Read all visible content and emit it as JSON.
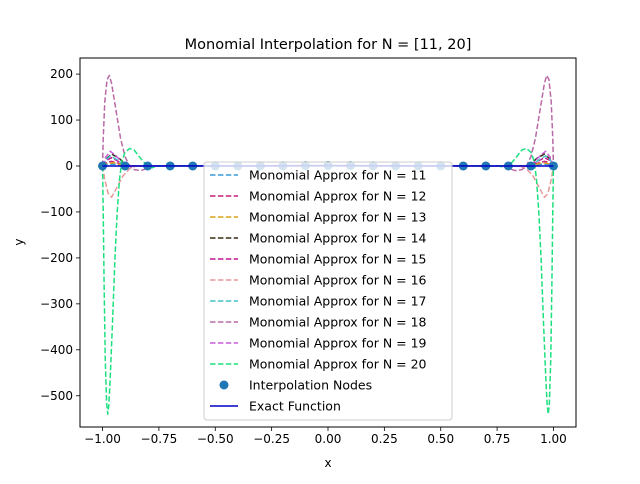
{
  "chart_data": {
    "type": "line",
    "title": "Monomial Interpolation for N = [11, 20]",
    "xlabel": "x",
    "ylabel": "y",
    "xlim": [
      -1.1,
      1.1
    ],
    "ylim": [
      -568,
      235
    ],
    "x_ticks": [
      {
        "value": -1.0,
        "label": "−1.00"
      },
      {
        "value": -0.75,
        "label": "−0.75"
      },
      {
        "value": -0.5,
        "label": "−0.50"
      },
      {
        "value": -0.25,
        "label": "−0.25"
      },
      {
        "value": 0.0,
        "label": "0.00"
      },
      {
        "value": 0.25,
        "label": "0.25"
      },
      {
        "value": 0.5,
        "label": "0.50"
      },
      {
        "value": 0.75,
        "label": "0.75"
      },
      {
        "value": 1.0,
        "label": "1.00"
      }
    ],
    "y_ticks": [
      {
        "value": 200,
        "label": "200"
      },
      {
        "value": 100,
        "label": "100"
      },
      {
        "value": 0,
        "label": "0"
      },
      {
        "value": -100,
        "label": "−100"
      },
      {
        "value": -200,
        "label": "−200"
      },
      {
        "value": -300,
        "label": "−300"
      },
      {
        "value": -400,
        "label": "−400"
      },
      {
        "value": -500,
        "label": "−500"
      }
    ],
    "grid": false,
    "legend_position": "lower-center",
    "series": [
      {
        "name": "Monomial Approx for N = 11",
        "color": "#3a9bd6",
        "style": "dashed",
        "points": [
          [
            -1.0,
            0
          ],
          [
            -0.98,
            3
          ],
          [
            -0.95,
            4
          ],
          [
            -0.92,
            2
          ],
          [
            -0.88,
            0
          ],
          [
            0,
            0
          ],
          [
            0.88,
            0
          ],
          [
            0.92,
            2
          ],
          [
            0.95,
            4
          ],
          [
            0.98,
            3
          ],
          [
            1.0,
            0
          ]
        ]
      },
      {
        "name": "Monomial Approx for N = 12",
        "color": "#c81e7f",
        "style": "dashed",
        "points": [
          [
            -1.0,
            0
          ],
          [
            -0.98,
            8
          ],
          [
            -0.96,
            10
          ],
          [
            -0.93,
            6
          ],
          [
            -0.9,
            0
          ],
          [
            0,
            0
          ],
          [
            0.9,
            0
          ],
          [
            0.93,
            6
          ],
          [
            0.96,
            10
          ],
          [
            0.98,
            8
          ],
          [
            1.0,
            0
          ]
        ]
      },
      {
        "name": "Monomial Approx for N = 13",
        "color": "#d9a21b",
        "style": "dashed",
        "points": [
          [
            -1.0,
            0
          ],
          [
            -0.98,
            5
          ],
          [
            -0.95,
            7
          ],
          [
            -0.92,
            3
          ],
          [
            -0.89,
            0
          ],
          [
            0,
            0
          ],
          [
            0.89,
            0
          ],
          [
            0.92,
            3
          ],
          [
            0.95,
            7
          ],
          [
            0.98,
            5
          ],
          [
            1.0,
            0
          ]
        ]
      },
      {
        "name": "Monomial Approx for N = 14",
        "color": "#3b2a14",
        "style": "dashed",
        "points": [
          [
            -1.0,
            0
          ],
          [
            -0.985,
            15
          ],
          [
            -0.96,
            26
          ],
          [
            -0.93,
            18
          ],
          [
            -0.9,
            5
          ],
          [
            -0.87,
            0
          ],
          [
            0,
            0
          ],
          [
            0.87,
            0
          ],
          [
            0.9,
            5
          ],
          [
            0.93,
            18
          ],
          [
            0.96,
            26
          ],
          [
            0.985,
            15
          ],
          [
            1.0,
            0
          ]
        ]
      },
      {
        "name": "Monomial Approx for N = 15",
        "color": "#c4168f",
        "style": "dashed",
        "points": [
          [
            -1.0,
            0
          ],
          [
            -0.985,
            12
          ],
          [
            -0.96,
            18
          ],
          [
            -0.93,
            10
          ],
          [
            -0.9,
            2
          ],
          [
            -0.87,
            0
          ],
          [
            0,
            0
          ],
          [
            0.87,
            0
          ],
          [
            0.9,
            2
          ],
          [
            0.93,
            10
          ],
          [
            0.96,
            18
          ],
          [
            0.985,
            12
          ],
          [
            1.0,
            0
          ]
        ]
      },
      {
        "name": "Monomial Approx for N = 16",
        "color": "#e8999a",
        "style": "dashed",
        "points": [
          [
            -1.0,
            0
          ],
          [
            -0.99,
            -30
          ],
          [
            -0.975,
            -60
          ],
          [
            -0.96,
            -68
          ],
          [
            -0.94,
            -50
          ],
          [
            -0.91,
            -22
          ],
          [
            -0.88,
            -6
          ],
          [
            -0.85,
            0
          ],
          [
            0,
            0
          ],
          [
            0.85,
            0
          ],
          [
            0.88,
            -6
          ],
          [
            0.91,
            -22
          ],
          [
            0.94,
            -50
          ],
          [
            0.96,
            -68
          ],
          [
            0.975,
            -60
          ],
          [
            0.99,
            -30
          ],
          [
            1.0,
            0
          ]
        ]
      },
      {
        "name": "Monomial Approx for N = 17",
        "color": "#44c2cc",
        "style": "dashed",
        "points": [
          [
            -1.0,
            0
          ],
          [
            -0.985,
            14
          ],
          [
            -0.965,
            22
          ],
          [
            -0.94,
            15
          ],
          [
            -0.91,
            4
          ],
          [
            -0.88,
            0
          ],
          [
            0,
            0
          ],
          [
            0.88,
            0
          ],
          [
            0.91,
            4
          ],
          [
            0.94,
            15
          ],
          [
            0.965,
            22
          ],
          [
            0.985,
            14
          ],
          [
            1.0,
            0
          ]
        ]
      },
      {
        "name": "Monomial Approx for N = 18",
        "color": "#b96aa6",
        "style": "dashed",
        "points": [
          [
            -1.0,
            0
          ],
          [
            -0.997,
            60
          ],
          [
            -0.99,
            140
          ],
          [
            -0.98,
            188
          ],
          [
            -0.97,
            197
          ],
          [
            -0.96,
            180
          ],
          [
            -0.94,
            120
          ],
          [
            -0.92,
            60
          ],
          [
            -0.9,
            20
          ],
          [
            -0.88,
            0
          ],
          [
            -0.86,
            -8
          ],
          [
            -0.83,
            -10
          ],
          [
            -0.8,
            -5
          ],
          [
            -0.77,
            0
          ],
          [
            0,
            0
          ],
          [
            0.77,
            0
          ],
          [
            0.8,
            -5
          ],
          [
            0.83,
            -10
          ],
          [
            0.86,
            -8
          ],
          [
            0.88,
            0
          ],
          [
            0.9,
            20
          ],
          [
            0.92,
            60
          ],
          [
            0.94,
            120
          ],
          [
            0.96,
            180
          ],
          [
            0.97,
            197
          ],
          [
            0.98,
            188
          ],
          [
            0.99,
            140
          ],
          [
            0.997,
            60
          ],
          [
            1.0,
            0
          ]
        ]
      },
      {
        "name": "Monomial Approx for N = 19",
        "color": "#c55fd6",
        "style": "dashed",
        "points": [
          [
            -1.0,
            0
          ],
          [
            -0.985,
            20
          ],
          [
            -0.965,
            32
          ],
          [
            -0.94,
            22
          ],
          [
            -0.91,
            6
          ],
          [
            -0.88,
            0
          ],
          [
            0,
            0
          ],
          [
            0.88,
            0
          ],
          [
            0.91,
            6
          ],
          [
            0.94,
            22
          ],
          [
            0.965,
            32
          ],
          [
            0.985,
            20
          ],
          [
            1.0,
            0
          ]
        ]
      },
      {
        "name": "Monomial Approx for N = 20",
        "color": "#1ee07f",
        "style": "dashed",
        "points": [
          [
            -1.0,
            0
          ],
          [
            -0.997,
            -100
          ],
          [
            -0.993,
            -260
          ],
          [
            -0.988,
            -420
          ],
          [
            -0.982,
            -515
          ],
          [
            -0.977,
            -540
          ],
          [
            -0.972,
            -520
          ],
          [
            -0.965,
            -450
          ],
          [
            -0.955,
            -330
          ],
          [
            -0.945,
            -200
          ],
          [
            -0.935,
            -100
          ],
          [
            -0.925,
            -30
          ],
          [
            -0.915,
            10
          ],
          [
            -0.9,
            30
          ],
          [
            -0.88,
            38
          ],
          [
            -0.86,
            35
          ],
          [
            -0.84,
            22
          ],
          [
            -0.82,
            10
          ],
          [
            -0.8,
            0
          ],
          [
            -0.78,
            -4
          ],
          [
            -0.76,
            0
          ],
          [
            0,
            0
          ],
          [
            0.76,
            0
          ],
          [
            0.78,
            -4
          ],
          [
            0.8,
            0
          ],
          [
            0.82,
            10
          ],
          [
            0.84,
            22
          ],
          [
            0.86,
            35
          ],
          [
            0.88,
            38
          ],
          [
            0.9,
            30
          ],
          [
            0.915,
            10
          ],
          [
            0.925,
            -30
          ],
          [
            0.935,
            -100
          ],
          [
            0.945,
            -200
          ],
          [
            0.955,
            -330
          ],
          [
            0.965,
            -450
          ],
          [
            0.972,
            -520
          ],
          [
            0.977,
            -540
          ],
          [
            0.982,
            -515
          ],
          [
            0.988,
            -420
          ],
          [
            0.993,
            -260
          ],
          [
            0.997,
            -100
          ],
          [
            1.0,
            0
          ]
        ]
      }
    ],
    "exact_function": {
      "name": "Exact Function",
      "color": "#0000cc",
      "style": "solid",
      "points": [
        [
          -1.0,
          0.04
        ],
        [
          -0.5,
          0.14
        ],
        [
          -0.25,
          0.39
        ],
        [
          0,
          1.0
        ],
        [
          0.25,
          0.39
        ],
        [
          0.5,
          0.14
        ],
        [
          1.0,
          0.04
        ]
      ]
    },
    "nodes": {
      "name": "Interpolation Nodes",
      "color": "#1f77b4",
      "x": [
        -1.0,
        -0.9,
        -0.8,
        -0.7,
        -0.6,
        -0.5,
        -0.4,
        -0.3,
        -0.2,
        -0.1,
        0.0,
        0.1,
        0.2,
        0.3,
        0.4,
        0.5,
        0.6,
        0.7,
        0.8,
        0.9,
        1.0
      ],
      "y": [
        0.04,
        0.05,
        0.06,
        0.08,
        0.1,
        0.14,
        0.2,
        0.31,
        0.5,
        0.8,
        1.0,
        0.8,
        0.5,
        0.31,
        0.2,
        0.14,
        0.1,
        0.08,
        0.06,
        0.05,
        0.04
      ]
    }
  }
}
